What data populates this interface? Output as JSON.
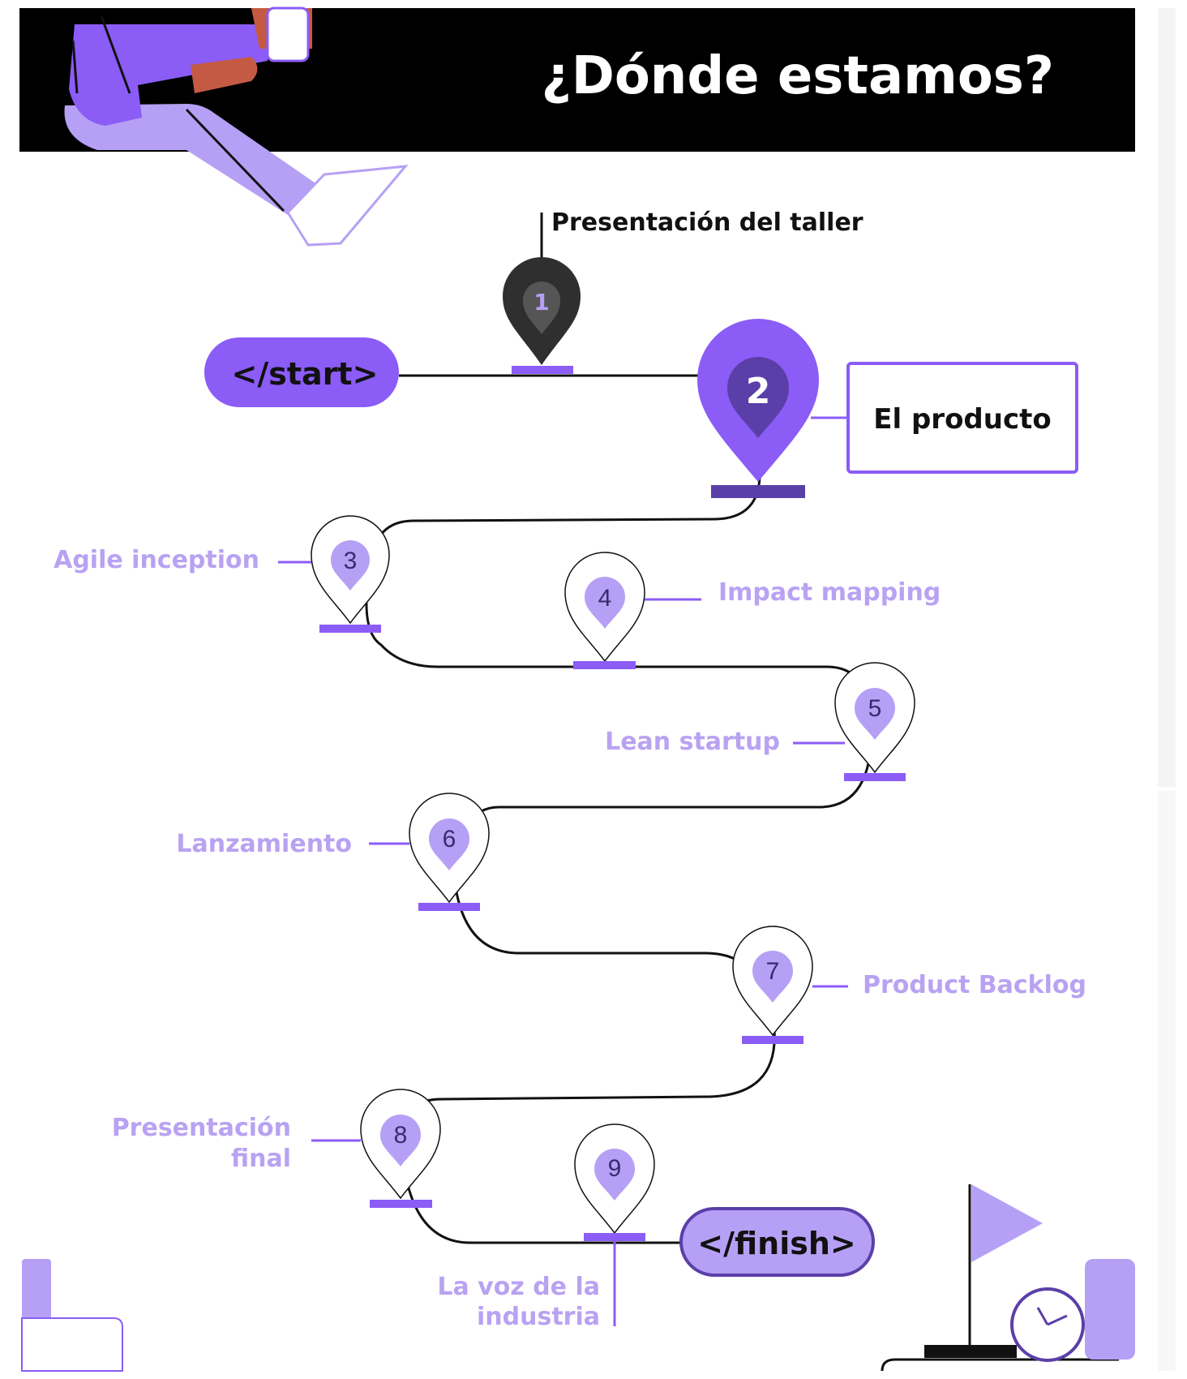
{
  "header": {
    "title": "¿Dónde estamos?",
    "colors": {
      "background": "#000000",
      "text": "#ffffff"
    }
  },
  "colors": {
    "accent": "#8b5cf6",
    "accent_light": "#b6a0f5",
    "accent_dark": "#5b3fa8",
    "label_light": "#b9a2f2",
    "path": "#111111",
    "pin_dark": "#2f2f2f"
  },
  "start_label": "</start>",
  "finish_label": "</finish>",
  "stops": [
    {
      "number": "1",
      "label": "Presentación del taller",
      "style": "dark"
    },
    {
      "number": "2",
      "label": "El producto",
      "style": "current"
    },
    {
      "number": "3",
      "label": "Agile inception",
      "style": "outline"
    },
    {
      "number": "4",
      "label": "Impact mapping",
      "style": "outline"
    },
    {
      "number": "5",
      "label": "Lean startup",
      "style": "outline"
    },
    {
      "number": "6",
      "label": "Lanzamiento",
      "style": "outline"
    },
    {
      "number": "7",
      "label": "Product Backlog",
      "style": "outline"
    },
    {
      "number": "8",
      "label": "Presentación final",
      "style": "outline",
      "label_lines": [
        "Presentación",
        "final"
      ]
    },
    {
      "number": "9",
      "label": "La voz de la industria",
      "style": "outline",
      "label_lines": [
        "La voz de la",
        "industria"
      ]
    }
  ],
  "decor_icons": [
    "person-illustration-icon",
    "flag-icon",
    "clock-icon"
  ]
}
